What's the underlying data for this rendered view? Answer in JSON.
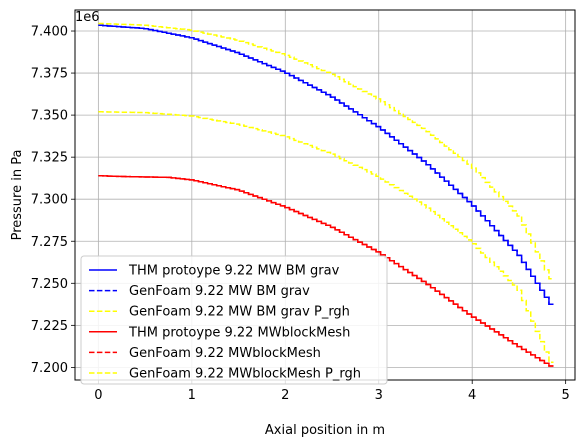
{
  "chart_data": {
    "type": "line",
    "xlabel": "Axial position in m",
    "ylabel": "Pressure in Pa",
    "offset_label": "1e6",
    "y_scale": 1000000,
    "xlim": [
      -0.25,
      5.1
    ],
    "ylim": [
      7.1925,
      7.4125
    ],
    "xticks": [
      0,
      1,
      2,
      3,
      4,
      5
    ],
    "xtick_labels": [
      "0",
      "1",
      "2",
      "3",
      "4",
      "5"
    ],
    "yticks": [
      7.2,
      7.225,
      7.25,
      7.275,
      7.3,
      7.325,
      7.35,
      7.375,
      7.4
    ],
    "ytick_labels": [
      "7.200",
      "7.225",
      "7.250",
      "7.275",
      "7.300",
      "7.325",
      "7.350",
      "7.375",
      "7.400"
    ],
    "grid": true,
    "legend_position": "lower-left",
    "series": [
      {
        "name": "THM protoype 9.22 MW BM grav",
        "color": "#0000ff",
        "style": "solid",
        "x": [
          0,
          0.5,
          1.0,
          1.5,
          2.0,
          2.5,
          3.0,
          3.5,
          4.0,
          4.5,
          4.87
        ],
        "y": [
          7.4035,
          7.4015,
          7.396,
          7.387,
          7.3755,
          7.361,
          7.343,
          7.322,
          7.297,
          7.267,
          7.2355
        ]
      },
      {
        "name": "GenFoam 9.22 MW BM grav",
        "color": "#0000ff",
        "style": "dashed",
        "x": [
          0,
          0.5,
          1.0,
          1.5,
          2.0,
          2.5,
          3.0,
          3.5,
          4.0,
          4.5,
          4.87
        ],
        "y": [
          7.4035,
          7.4015,
          7.396,
          7.387,
          7.3755,
          7.361,
          7.343,
          7.322,
          7.297,
          7.267,
          7.2355
        ]
      },
      {
        "name": "GenFoam 9.22 MW BM grav  P_rgh",
        "color": "#ffff00",
        "style": "dashed",
        "x": [
          0,
          0.5,
          1.0,
          1.5,
          2.0,
          2.5,
          3.0,
          3.5,
          4.0,
          4.5,
          4.87
        ],
        "y": [
          7.4045,
          7.4035,
          7.4005,
          7.3945,
          7.386,
          7.3745,
          7.3595,
          7.3415,
          7.3195,
          7.2905,
          7.25
        ]
      },
      {
        "name": "THM protoype 9.22 MWblockMesh",
        "color": "#ff0000",
        "style": "solid",
        "x": [
          0,
          0.25,
          0.75,
          1.0,
          1.5,
          2.0,
          2.5,
          3.0,
          3.5,
          4.0,
          4.5,
          4.87
        ],
        "y": [
          7.314,
          7.3135,
          7.313,
          7.3115,
          7.3055,
          7.2955,
          7.2835,
          7.2685,
          7.2505,
          7.2305,
          7.2125,
          7.2
        ]
      },
      {
        "name": "GenFoam 9.22 MWblockMesh",
        "color": "#ff0000",
        "style": "dashed",
        "x": [
          0,
          0.25,
          0.75,
          1.0,
          1.5,
          2.0,
          2.5,
          3.0,
          3.5,
          4.0,
          4.5,
          4.87
        ],
        "y": [
          7.314,
          7.3135,
          7.313,
          7.3115,
          7.3055,
          7.2955,
          7.2835,
          7.2685,
          7.2505,
          7.2305,
          7.2125,
          7.2
        ]
      },
      {
        "name": "GenFoam 9.22 MWblockMesh P_rgh",
        "color": "#ffff00",
        "style": "dashed",
        "x": [
          0,
          0.5,
          1.0,
          1.5,
          2.0,
          2.5,
          3.0,
          3.5,
          4.0,
          4.5,
          4.87
        ],
        "y": [
          7.352,
          7.3515,
          7.3495,
          7.3445,
          7.3375,
          7.327,
          7.3135,
          7.296,
          7.2745,
          7.2465,
          7.2
        ]
      }
    ]
  }
}
